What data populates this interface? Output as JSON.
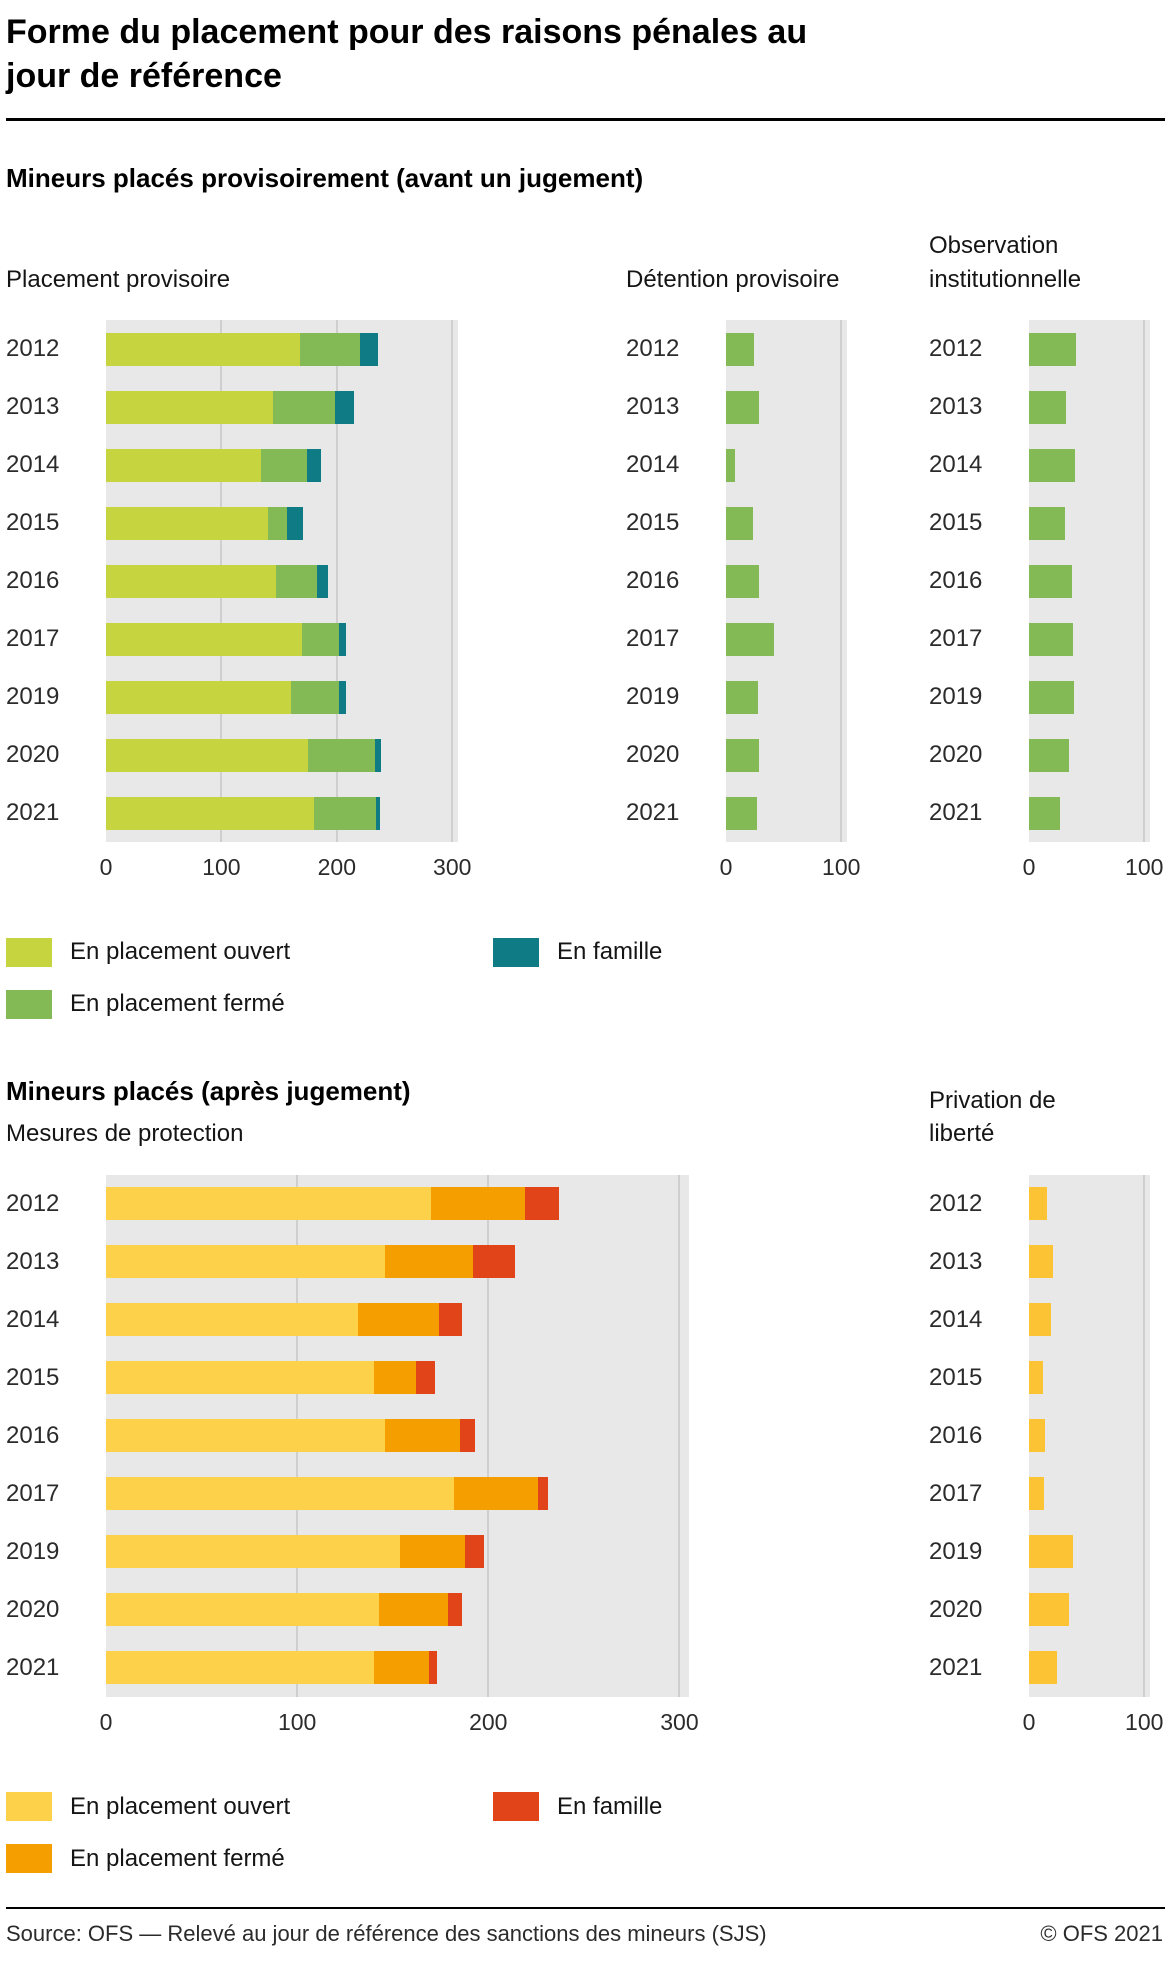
{
  "header": {
    "title": "Forme du placement pour des raisons pénales au jour de référence"
  },
  "sections": {
    "provisional": {
      "heading": "Mineurs placés provisoirement (avant un jugement)"
    },
    "final": {
      "heading": "Mineurs placés (après jugement)"
    }
  },
  "colors": {
    "plot_background": "#e8e8e8",
    "gridline": "#cfcfcf",
    "open_placement_green": "#c6d43f",
    "closed_placement_green": "#84ba55",
    "family_teal": "#0f7c85",
    "open_placement_yellow": "#fdd24a",
    "closed_placement_orange": "#f59e00",
    "family_red": "#e2441a",
    "deprivation_gold": "#fcc434"
  },
  "chart_data": [
    {
      "id": "placement-provisoire",
      "type": "bar",
      "orientation": "horizontal",
      "title": "Placement provisoire",
      "categories": [
        "2012",
        "2013",
        "2014",
        "2015",
        "2016",
        "2017",
        "2019",
        "2020",
        "2021"
      ],
      "series": [
        {
          "name": "En placement ouvert",
          "color": "#c6d43f",
          "values": [
            168,
            145,
            134,
            140,
            147,
            170,
            160,
            175,
            180
          ]
        },
        {
          "name": "En placement fermé",
          "color": "#84ba55",
          "values": [
            52,
            53,
            40,
            17,
            36,
            32,
            42,
            58,
            54
          ]
        },
        {
          "name": "En famille",
          "color": "#0f7c85",
          "values": [
            16,
            17,
            12,
            14,
            9,
            6,
            6,
            5,
            3
          ]
        }
      ],
      "xmax": 300,
      "ticks": [
        0,
        100,
        200,
        300
      ],
      "track_max": 305,
      "grid": true,
      "legend_position": "below"
    },
    {
      "id": "detention-provisoire",
      "type": "bar",
      "orientation": "horizontal",
      "title": "Détention provisoire",
      "categories": [
        "2012",
        "2013",
        "2014",
        "2015",
        "2016",
        "2017",
        "2019",
        "2020",
        "2021"
      ],
      "series": [
        {
          "name": "Détention provisoire",
          "color": "#84ba55",
          "values": [
            24,
            29,
            8,
            23,
            29,
            42,
            28,
            29,
            27
          ]
        }
      ],
      "xmax": 100,
      "ticks": [
        0,
        100
      ],
      "track_max": 105,
      "grid": false,
      "legend_position": "none"
    },
    {
      "id": "observation-institutionnelle",
      "type": "bar",
      "orientation": "horizontal",
      "title": "Observation institutionnelle",
      "categories": [
        "2012",
        "2013",
        "2014",
        "2015",
        "2016",
        "2017",
        "2019",
        "2020",
        "2021"
      ],
      "series": [
        {
          "name": "Observation institutionnelle",
          "color": "#84ba55",
          "values": [
            41,
            32,
            40,
            31,
            37,
            38,
            39,
            35,
            27
          ]
        }
      ],
      "xmax": 100,
      "ticks": [
        0,
        100
      ],
      "track_max": 105,
      "grid": false,
      "legend_position": "none"
    },
    {
      "id": "mesures-de-protection",
      "type": "bar",
      "orientation": "horizontal",
      "title": "Mesures de protection",
      "categories": [
        "2012",
        "2013",
        "2014",
        "2015",
        "2016",
        "2017",
        "2019",
        "2020",
        "2021"
      ],
      "series": [
        {
          "name": "En placement ouvert",
          "color": "#fdd24a",
          "values": [
            170,
            146,
            132,
            140,
            146,
            182,
            154,
            143,
            140
          ]
        },
        {
          "name": "En placement fermé",
          "color": "#f59e00",
          "values": [
            49,
            46,
            42,
            22,
            39,
            44,
            34,
            36,
            29
          ]
        },
        {
          "name": "En famille",
          "color": "#e2441a",
          "values": [
            18,
            22,
            12,
            10,
            8,
            5,
            10,
            7,
            4
          ]
        }
      ],
      "xmax": 300,
      "ticks": [
        0,
        100,
        200,
        300
      ],
      "track_max": 305,
      "grid": true,
      "legend_position": "below"
    },
    {
      "id": "privation-de-liberte",
      "type": "bar",
      "orientation": "horizontal",
      "title": "Privation de liberté",
      "categories": [
        "2012",
        "2013",
        "2014",
        "2015",
        "2016",
        "2017",
        "2019",
        "2020",
        "2021"
      ],
      "series": [
        {
          "name": "Privation de liberté",
          "color": "#fcc434",
          "values": [
            16,
            21,
            19,
            12,
            14,
            13,
            38,
            35,
            24
          ]
        }
      ],
      "xmax": 100,
      "ticks": [
        0,
        100
      ],
      "track_max": 105,
      "grid": false,
      "legend_position": "none"
    }
  ],
  "legends": {
    "provisional": {
      "items": [
        {
          "label": "En placement ouvert",
          "color": "#c6d43f"
        },
        {
          "label": "En placement fermé",
          "color": "#84ba55"
        },
        {
          "label": "En famille",
          "color": "#0f7c85"
        }
      ]
    },
    "final": {
      "items": [
        {
          "label": "En placement ouvert",
          "color": "#fdd24a"
        },
        {
          "label": "En placement fermé",
          "color": "#f59e00"
        },
        {
          "label": "En famille",
          "color": "#e2441a"
        }
      ]
    }
  },
  "footer": {
    "source": "Source: OFS — Relevé au jour de référence des sanctions des mineurs (SJS)",
    "copyright": "© OFS 2021"
  }
}
